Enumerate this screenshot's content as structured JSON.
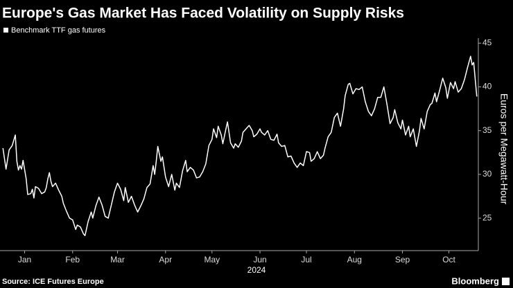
{
  "chart_data": {
    "type": "line",
    "title": "Europe's Gas Market Has Faced Volatility on Supply Risks",
    "ylabel": "Euros per Megawatt-Hour",
    "xlabel": "2024",
    "source": "Source: ICE Futures Europe",
    "brand": "Bloomberg",
    "legend": "top-left",
    "xlim": [
      0,
      308
    ],
    "ylim": [
      22,
      45.5
    ],
    "yticks": [
      25,
      30,
      35,
      40,
      45
    ],
    "xticks": [
      {
        "value": 15,
        "label": "Jan"
      },
      {
        "value": 46,
        "label": "Feb"
      },
      {
        "value": 75,
        "label": "Mar"
      },
      {
        "value": 106,
        "label": "Apr"
      },
      {
        "value": 136,
        "label": "May"
      },
      {
        "value": 167,
        "label": "Jun"
      },
      {
        "value": 197,
        "label": "Jul"
      },
      {
        "value": 228,
        "label": "Aug"
      },
      {
        "value": 259,
        "label": "Sep"
      },
      {
        "value": 289,
        "label": "Oct"
      }
    ],
    "x": [
      1,
      3,
      5,
      7,
      9,
      10,
      11,
      12,
      13,
      14,
      16,
      17,
      19,
      20,
      21,
      22,
      24,
      26,
      28,
      29,
      30,
      31,
      32,
      33,
      35,
      37,
      39,
      40,
      42,
      44,
      46,
      48,
      49,
      51,
      53,
      54,
      56,
      58,
      59,
      61,
      63,
      65,
      67,
      69,
      71,
      73,
      75,
      77,
      79,
      80,
      82,
      84,
      86,
      88,
      90,
      92,
      94,
      96,
      98,
      99,
      100,
      101,
      103,
      104,
      106,
      108,
      110,
      112,
      113,
      115,
      117,
      119,
      120,
      122,
      124,
      126,
      128,
      130,
      132,
      134,
      136,
      137,
      139,
      140,
      142,
      143,
      145,
      146,
      148,
      150,
      151,
      153,
      155,
      156,
      158,
      160,
      162,
      163,
      165,
      167,
      168,
      170,
      172,
      174,
      176,
      178,
      179,
      181,
      183,
      185,
      187,
      189,
      191,
      193,
      195,
      197,
      199,
      200,
      202,
      204,
      206,
      208,
      209,
      211,
      213,
      215,
      217,
      219,
      221,
      222,
      224,
      225,
      227,
      229,
      231,
      233,
      235,
      237,
      239,
      241,
      243,
      245,
      247,
      249,
      251,
      253,
      254,
      256,
      258,
      259,
      261,
      263,
      264,
      266,
      268,
      270,
      271,
      273,
      275,
      277,
      278,
      280,
      281,
      283,
      285,
      287,
      288,
      290,
      292,
      293,
      295,
      297,
      299,
      301,
      303,
      304,
      305,
      307
    ],
    "series": [
      {
        "name": "Benchmark TTF gas futures",
        "color": "#ffffff",
        "values": [
          33.0,
          30.6,
          32.8,
          33.3,
          34.5,
          31.5,
          30.5,
          31.0,
          30.6,
          31.6,
          29.5,
          27.7,
          27.8,
          28.3,
          27.3,
          28.6,
          28.4,
          27.8,
          28.0,
          28.5,
          29.5,
          30.2,
          29.2,
          28.6,
          29.0,
          28.2,
          27.5,
          26.7,
          25.8,
          25.0,
          24.8,
          23.7,
          24.2,
          24.0,
          23.2,
          23.0,
          24.6,
          25.7,
          25.0,
          26.4,
          27.4,
          26.5,
          25.2,
          25.0,
          26.5,
          28.0,
          29.0,
          28.3,
          27.0,
          28.5,
          26.8,
          27.5,
          26.5,
          25.7,
          26.4,
          27.2,
          28.5,
          28.9,
          31.0,
          30.0,
          31.5,
          33.2,
          31.5,
          32.0,
          29.7,
          28.6,
          30.0,
          28.2,
          29.0,
          28.5,
          30.4,
          31.6,
          30.3,
          30.8,
          30.5,
          29.6,
          29.7,
          30.3,
          31.2,
          33.3,
          34.0,
          35.2,
          34.2,
          35.5,
          34.5,
          33.5,
          35.2,
          36.0,
          33.6,
          33.0,
          33.5,
          33.1,
          33.8,
          34.8,
          35.2,
          35.6,
          35.0,
          34.3,
          34.6,
          35.2,
          34.8,
          34.5,
          35.0,
          34.0,
          33.9,
          34.6,
          33.6,
          33.2,
          33.3,
          32.0,
          32.1,
          31.3,
          30.8,
          31.3,
          31.0,
          32.6,
          32.5,
          31.5,
          31.8,
          32.6,
          31.8,
          32.2,
          33.0,
          34.3,
          34.8,
          36.5,
          37.0,
          35.5,
          37.5,
          39.0,
          40.3,
          40.4,
          39.2,
          39.8,
          39.7,
          40.0,
          38.3,
          37.2,
          36.7,
          37.5,
          38.8,
          38.8,
          40.0,
          38.0,
          35.8,
          36.5,
          37.4,
          35.9,
          35.2,
          36.2,
          34.5,
          35.5,
          34.3,
          35.2,
          33.2,
          35.0,
          36.4,
          35.2,
          37.2,
          38.0,
          38.1,
          39.3,
          38.3,
          39.6,
          41.0,
          39.9,
          38.7,
          40.5,
          39.8,
          40.6,
          39.4,
          39.8,
          40.8,
          42.2,
          43.5,
          42.5,
          42.8,
          38.9
        ]
      }
    ]
  }
}
